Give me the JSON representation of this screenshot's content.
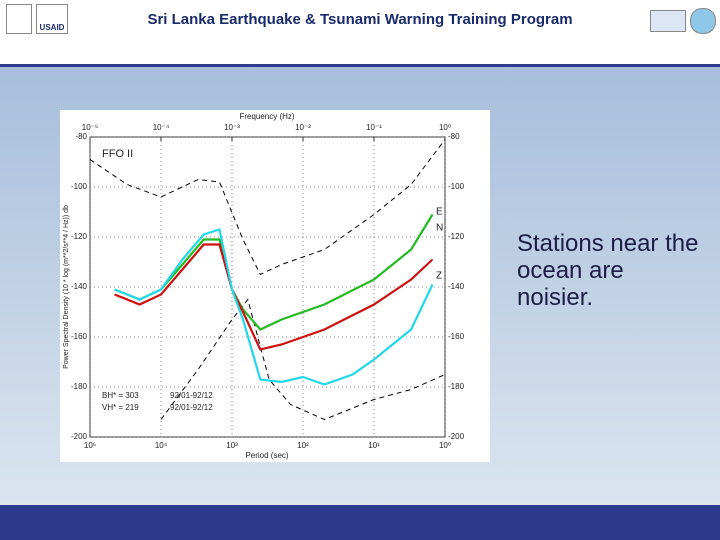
{
  "header": {
    "title": "Sri Lanka Earthquake & Tsunami Warning Training Program",
    "logo_text": "USAID"
  },
  "body": {
    "text": "Stations near the ocean are noisier."
  },
  "chart_data": {
    "type": "line",
    "xlabel": "Period (sec)",
    "x2label": "Frequency (Hz)",
    "ylabel": "Power Spectral Density (10 * log (m**2/s**4 / Hz)) db",
    "xscale": "log",
    "xlim": [
      100000,
      1
    ],
    "ylim": [
      -200,
      -80
    ],
    "xticks": [
      {
        "value": 100000,
        "label": "10⁵"
      },
      {
        "value": 10000,
        "label": "10⁴"
      },
      {
        "value": 1000,
        "label": "10³"
      },
      {
        "value": 100,
        "label": "10²"
      },
      {
        "value": 10,
        "label": "10¹"
      },
      {
        "value": 1,
        "label": "10⁰"
      }
    ],
    "x2ticks": [
      {
        "value": 1e-05,
        "label": "10⁻⁵"
      },
      {
        "value": 0.0001,
        "label": "10⁻⁴"
      },
      {
        "value": 0.001,
        "label": "10⁻³"
      },
      {
        "value": 0.01,
        "label": "10⁻²"
      },
      {
        "value": 0.1,
        "label": "10⁻¹"
      },
      {
        "value": 1,
        "label": "10⁰"
      }
    ],
    "yticks": [
      -80,
      -100,
      -120,
      -140,
      -160,
      -180,
      -200
    ],
    "grid": true,
    "annotations": [
      "FFO II",
      "BH* = 303",
      "VH* = 219",
      "92/01-92/12",
      "92/01-92/12"
    ],
    "series": [
      {
        "color": "#000000",
        "dashed": true,
        "x": [
          100000,
          30000,
          10000,
          3000,
          1500,
          700,
          400,
          200,
          50,
          10,
          3,
          1
        ],
        "values": [
          -89,
          -99,
          -104,
          -97,
          -98,
          -121,
          -135,
          -131,
          -125,
          -111,
          -99,
          -81
        ]
      },
      {
        "color": "#000000",
        "dashed": true,
        "x": [
          10000,
          3000,
          1000,
          600,
          300,
          150,
          50,
          10,
          3,
          1
        ],
        "values": [
          -193,
          -173,
          -153,
          -145,
          -177,
          -187,
          -193,
          -185,
          -181,
          -175
        ]
      },
      {
        "name": "E",
        "color": "#22bb22",
        "x": [
          45000,
          20000,
          10000,
          5000,
          2500,
          1500,
          1000,
          700,
          400,
          200,
          50,
          10,
          3,
          1.5
        ],
        "values": [
          -141,
          -145,
          -141,
          -131,
          -121,
          -121,
          -141,
          -149,
          -157,
          -153,
          -147,
          -137,
          -125,
          -111
        ]
      },
      {
        "name": "N",
        "color": "#cc1111",
        "x": [
          45000,
          20000,
          10000,
          5000,
          2500,
          1500,
          1000,
          700,
          400,
          200,
          50,
          10,
          3,
          1.5
        ],
        "values": [
          -143,
          -147,
          -143,
          -133,
          -123,
          -123,
          -141,
          -150,
          -165,
          -163,
          -157,
          -147,
          -137,
          -129
        ]
      },
      {
        "name": "Z",
        "color": "#22d8e8",
        "x": [
          45000,
          20000,
          10000,
          5000,
          2500,
          1500,
          1000,
          700,
          400,
          200,
          100,
          50,
          20,
          10,
          3,
          1.5
        ],
        "values": [
          -141,
          -145,
          -141,
          -129,
          -119,
          -117,
          -141,
          -153,
          -177,
          -178,
          -176,
          -179,
          -175,
          -169,
          -157,
          -139
        ]
      }
    ]
  }
}
